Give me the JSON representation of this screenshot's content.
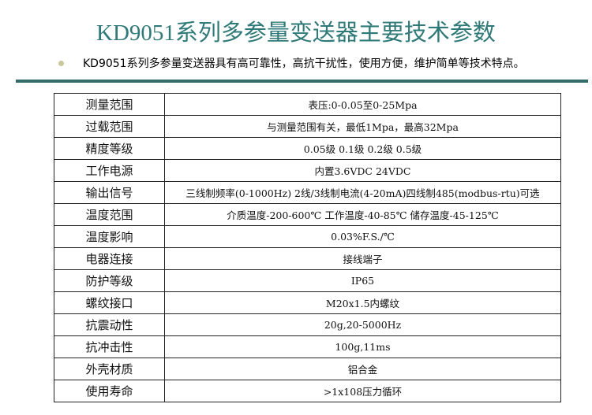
{
  "title": "KD9051系列多参量变送器主要技术参数",
  "intro": "KD9051系列多参量变送器具有高可靠性，高抗干扰性，使用方便，维护简单等技术特点。",
  "rows": [
    {
      "k": "测量范围",
      "v": "表压:0-0.05至0-25Mpa"
    },
    {
      "k": "过载范围",
      "v": "与测量范围有关，最低1Mpa，最高32Mpa"
    },
    {
      "k": "精度等级",
      "v": "0.05级 0.1级 0.2级 0.5级"
    },
    {
      "k": "工作电源",
      "v": "内置3.6VDC  24VDC"
    },
    {
      "k": "输出信号",
      "v": "三线制频率(0-1000Hz) 2线/3线制电流(4-20mA)四线制485(modbus-rtu)可选"
    },
    {
      "k": "温度范围",
      "v": "介质温度-200-600℃ 工作温度-40-85℃ 储存温度-45-125℃"
    },
    {
      "k": "温度影响",
      "v": "0.03%F.S./℃"
    },
    {
      "k": "电器连接",
      "v": "接线端子"
    },
    {
      "k": "防护等级",
      "v": "IP65"
    },
    {
      "k": "螺纹接口",
      "v": "M20x1.5内螺纹"
    },
    {
      "k": "抗震动性",
      "v": "20g,20-5000Hz"
    },
    {
      "k": "抗冲击性",
      "v": "100g,11ms"
    },
    {
      "k": "外壳材质",
      "v": "铝合金"
    },
    {
      "k": "使用寿命",
      "v": ">1x108压力循环"
    }
  ]
}
